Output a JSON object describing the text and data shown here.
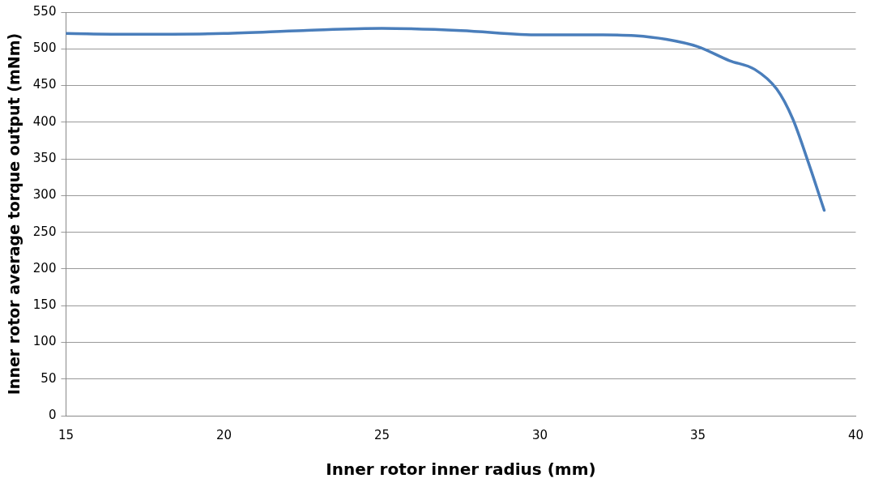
{
  "chart_data": {
    "type": "line",
    "xlabel": "Inner rotor inner radius (mm)",
    "ylabel": "Inner rotor average torque output (mNm)",
    "x": [
      15,
      17,
      20,
      22.5,
      25,
      27.5,
      30,
      32,
      33,
      34,
      35,
      36,
      36.8,
      37.5,
      38,
      38.5,
      39
    ],
    "series": [
      {
        "color": "#4a7ebb",
        "values": [
          521,
          520,
          521,
          525,
          528,
          525,
          519,
          519,
          518,
          513,
          503,
          484,
          472,
          445,
          405,
          345,
          280
        ]
      }
    ],
    "xlim": [
      15,
      40
    ],
    "xticks": [
      15,
      20,
      25,
      30,
      35,
      40
    ],
    "ylim": [
      0,
      550
    ],
    "yticks": [
      0,
      50,
      100,
      150,
      200,
      250,
      300,
      350,
      400,
      450,
      500,
      550
    ],
    "grid": "y",
    "legend": false,
    "marker": "none",
    "line_style": "solid"
  }
}
